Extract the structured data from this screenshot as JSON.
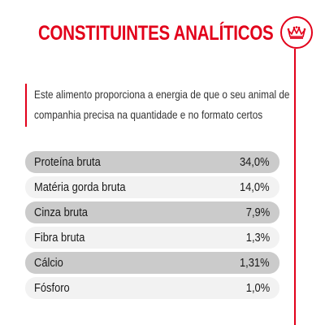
{
  "title": "CONSTITUINTES ANALÍTICOS",
  "badge_icon": "crown-icon",
  "accent_color": "#e2001a",
  "description": {
    "line1": "Este alimento proporciona a energia de que o seu animal de",
    "line2": "companhia precisa na quantidade e no formato certos"
  },
  "constituents": [
    {
      "label": "Proteína bruta",
      "value": "34,0%"
    },
    {
      "label": "Matéria gorda bruta",
      "value": "14,0%"
    },
    {
      "label": "Cinza bruta",
      "value": "7,9%"
    },
    {
      "label": "Fibra bruta",
      "value": "1,3%"
    },
    {
      "label": "Cálcio",
      "value": "1,31%"
    },
    {
      "label": "Fósforo",
      "value": "1,0%"
    }
  ]
}
